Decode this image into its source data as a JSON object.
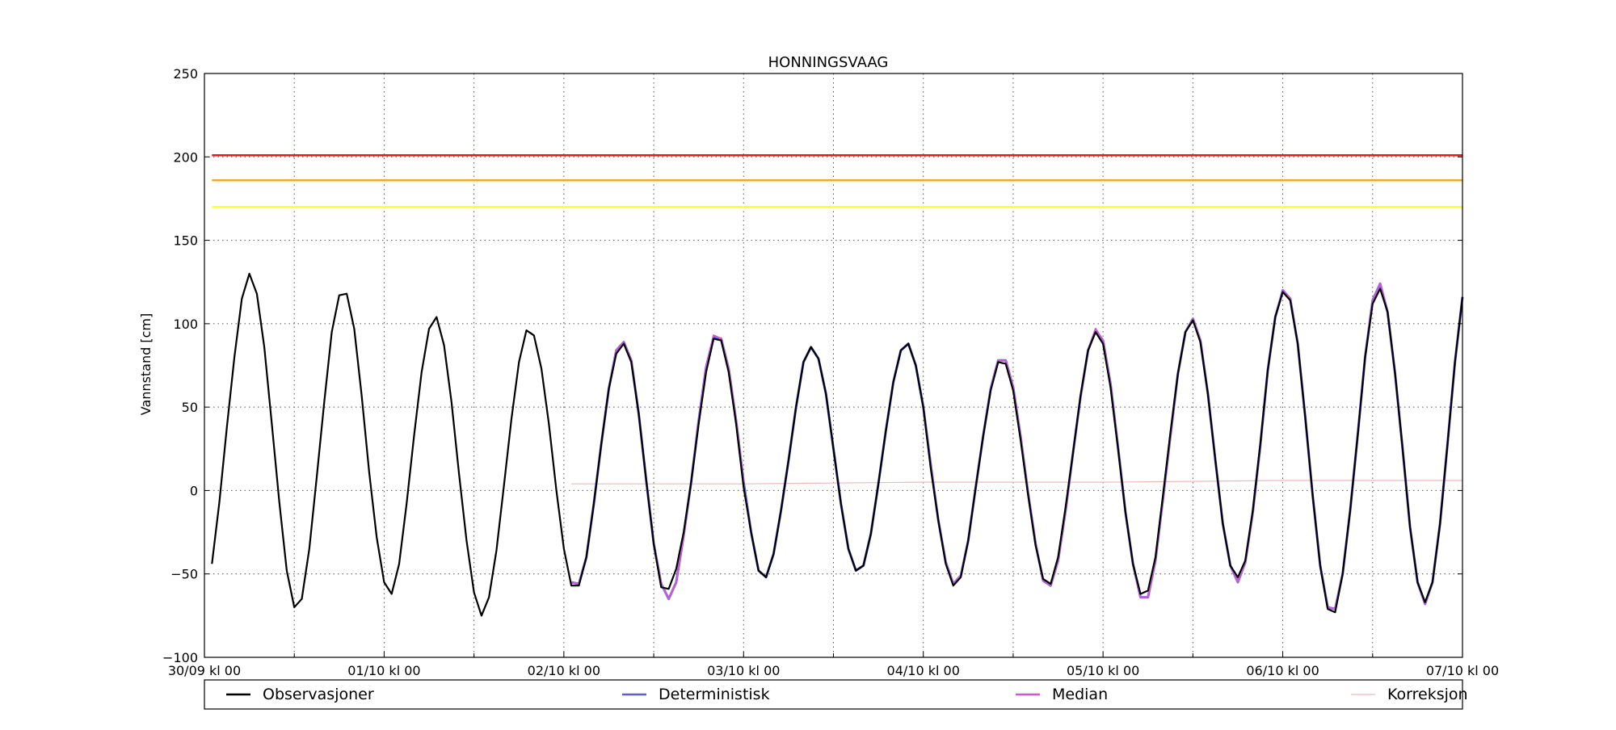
{
  "chart_data": {
    "type": "line",
    "title": "HONNINGSVAAG",
    "xlabel": "",
    "ylabel": "Vannstand [cm]",
    "ylim": [
      -100,
      250
    ],
    "xlim_hours": [
      0,
      168
    ],
    "yticks": [
      250,
      200,
      150,
      100,
      50,
      0,
      -50,
      -100
    ],
    "ytick_labels": [
      "250",
      "200",
      "150",
      "100",
      "50",
      "0",
      "−50",
      "−100"
    ],
    "xticks": [
      {
        "hour": 0,
        "label": "30/09 kl 00"
      },
      {
        "hour": 24,
        "label": "01/10 kl 00"
      },
      {
        "hour": 48,
        "label": "02/10 kl 00"
      },
      {
        "hour": 72,
        "label": "03/10 kl 00"
      },
      {
        "hour": 96,
        "label": "04/10 kl 00"
      },
      {
        "hour": 120,
        "label": "05/10 kl 00"
      },
      {
        "hour": 144,
        "label": "06/10 kl 00"
      },
      {
        "hour": 168,
        "label": "07/10 kl 00"
      }
    ],
    "minor_grid_hours": [
      12,
      36,
      60,
      84,
      108,
      132,
      156
    ],
    "grid": true,
    "legend_position": "bottom",
    "thresholds": [
      {
        "value": 201,
        "color": "#e41a1c"
      },
      {
        "value": 186,
        "color": "#f5a623"
      },
      {
        "value": 170,
        "color": "#ffff33"
      }
    ],
    "series": [
      {
        "name": "Observasjoner",
        "color": "#000000",
        "x": [
          1,
          2,
          3,
          4,
          5,
          6,
          7,
          8,
          9,
          10,
          11,
          12,
          13,
          14,
          15,
          16,
          17,
          18,
          19,
          20,
          21,
          22,
          23,
          24,
          25,
          26,
          27,
          28,
          29,
          30,
          31,
          32,
          33,
          34,
          35,
          36,
          37,
          38,
          39,
          40,
          41,
          42,
          43,
          44,
          45,
          46,
          47,
          48,
          49,
          50,
          51,
          52,
          53,
          54,
          55,
          56,
          57,
          58,
          59,
          60,
          61,
          62,
          63,
          64,
          65,
          66,
          67,
          68,
          69,
          70,
          71,
          72,
          73,
          74,
          75,
          76,
          77,
          78,
          79,
          80,
          81,
          82,
          83,
          84,
          85,
          86,
          87,
          88,
          89,
          90,
          91,
          92,
          93,
          94,
          95,
          96,
          97,
          98,
          99,
          100,
          101,
          102,
          103,
          104,
          105,
          106,
          107,
          108,
          109,
          110,
          111,
          112,
          113,
          114,
          115,
          116,
          117,
          118,
          119,
          120,
          121,
          122,
          123,
          124,
          125,
          126,
          127,
          128,
          129,
          130,
          131,
          132,
          133,
          134,
          135,
          136,
          137,
          138,
          139,
          140,
          141,
          142,
          143,
          144,
          145,
          146,
          147,
          148,
          149,
          150,
          151,
          152,
          153,
          154,
          155,
          156,
          157,
          158,
          159,
          160,
          161,
          162,
          163,
          164,
          165,
          166,
          167,
          168
        ],
        "y": [
          -44,
          -7,
          38,
          80,
          115,
          130,
          118,
          86,
          40,
          -7,
          -48,
          -70,
          -65,
          -35,
          8,
          53,
          95,
          117,
          118,
          97,
          57,
          11,
          -28,
          -55,
          -62,
          -44,
          -8,
          33,
          71,
          97,
          104,
          87,
          53,
          10,
          -30,
          -61,
          -75,
          -64,
          -36,
          3,
          43,
          77,
          96,
          93,
          73,
          40,
          0,
          -35,
          -57,
          -57,
          -40,
          -8,
          28,
          61,
          82,
          88,
          77,
          46,
          6,
          -32,
          -58,
          -59,
          -47,
          -25,
          5,
          40,
          71,
          91,
          90,
          71,
          40,
          2,
          -25,
          -48,
          -52,
          -38,
          -12,
          18,
          50,
          77,
          86,
          79,
          58,
          25,
          -8,
          -35,
          -48,
          -45,
          -26,
          4,
          36,
          65,
          84,
          88,
          75,
          50,
          13,
          -18,
          -44,
          -57,
          -52,
          -30,
          2,
          33,
          60,
          77,
          76,
          60,
          30,
          -3,
          -33,
          -53,
          -56,
          -40,
          -10,
          23,
          57,
          84,
          95,
          88,
          62,
          25,
          -13,
          -44,
          -62,
          -60,
          -40,
          -3,
          35,
          70,
          95,
          102,
          89,
          58,
          18,
          -20,
          -45,
          -52,
          -42,
          -12,
          28,
          72,
          104,
          119,
          114,
          88,
          44,
          -3,
          -45,
          -71,
          -73,
          -50,
          -12,
          33,
          80,
          112,
          121,
          107,
          70,
          25,
          -22,
          -55,
          -67,
          -55,
          -20,
          28,
          77,
          116
        ]
      },
      {
        "name": "Deterministisk",
        "color": "#5a5ee0",
        "x": [
          49,
          50,
          51,
          52,
          53,
          54,
          55,
          56,
          57,
          58,
          59,
          60,
          61,
          62,
          63,
          64,
          65,
          66,
          67,
          68,
          69,
          70,
          71,
          72,
          73,
          74,
          75,
          76,
          77,
          78,
          79,
          80,
          81,
          82,
          83,
          84,
          85,
          86,
          87,
          88,
          89,
          90,
          91,
          92,
          93,
          94,
          95,
          96,
          97,
          98,
          99,
          100,
          101,
          102,
          103,
          104,
          105,
          106,
          107,
          108,
          109,
          110,
          111,
          112,
          113,
          114,
          115,
          116,
          117,
          118,
          119,
          120,
          121,
          122,
          123,
          124,
          125,
          126,
          127,
          128,
          129,
          130,
          131,
          132,
          133,
          134,
          135,
          136,
          137,
          138,
          139,
          140,
          141,
          142,
          143,
          144,
          145,
          146,
          147,
          148,
          149,
          150,
          151,
          152,
          153,
          154,
          155,
          156,
          157,
          158,
          159,
          160,
          161,
          162,
          163,
          164,
          165,
          166,
          167,
          168
        ],
        "y": [
          -55,
          -56,
          -40,
          -8,
          28,
          61,
          84,
          89,
          78,
          46,
          6,
          -32,
          -56,
          -65,
          -55,
          -27,
          5,
          42,
          74,
          92,
          91,
          73,
          42,
          5,
          -25,
          -48,
          -52,
          -38,
          -12,
          18,
          50,
          77,
          86,
          79,
          58,
          25,
          -8,
          -35,
          -48,
          -45,
          -26,
          4,
          36,
          65,
          84,
          88,
          75,
          50,
          15,
          -18,
          -43,
          -56,
          -51,
          -30,
          2,
          33,
          61,
          78,
          78,
          62,
          32,
          -2,
          -32,
          -54,
          -57,
          -42,
          -12,
          23,
          56,
          84,
          96,
          90,
          64,
          26,
          -13,
          -44,
          -64,
          -64,
          -42,
          -5,
          33,
          70,
          95,
          103,
          90,
          58,
          18,
          -20,
          -45,
          -55,
          -43,
          -13,
          27,
          72,
          104,
          120,
          115,
          88,
          44,
          -3,
          -45,
          -70,
          -71,
          -50,
          -12,
          33,
          80,
          114,
          124,
          107,
          70,
          25,
          -22,
          -55,
          -68,
          -55,
          -20,
          28,
          77,
          116
        ]
      },
      {
        "name": "Median",
        "color": "#c85cd6",
        "x": [
          49,
          50,
          51,
          52,
          53,
          54,
          55,
          56,
          57,
          58,
          59,
          60,
          61,
          62,
          63,
          64,
          65,
          66,
          67,
          68,
          69,
          70,
          71,
          72,
          96,
          97,
          98,
          99,
          100,
          101,
          102,
          103,
          104,
          105,
          106,
          107,
          108,
          109,
          110,
          111,
          112,
          113,
          114,
          115,
          116,
          117,
          118,
          119,
          120,
          121,
          122,
          123,
          124,
          125,
          126,
          127,
          128,
          129,
          130,
          131,
          132,
          133,
          134,
          135,
          136,
          137,
          138,
          139,
          140,
          141,
          142,
          143,
          144,
          145,
          146,
          147,
          148,
          149,
          150,
          151,
          152,
          153,
          154,
          155,
          156,
          157,
          158,
          159,
          160,
          161,
          162,
          163,
          164,
          165,
          166,
          167,
          168
        ],
        "y": [
          -55,
          -56,
          -40,
          -8,
          28,
          61,
          84,
          89,
          78,
          46,
          6,
          -32,
          -56,
          -65,
          -55,
          -27,
          5,
          42,
          74,
          93,
          91,
          73,
          42,
          5,
          50,
          14,
          -18,
          -43,
          -56,
          -51,
          -30,
          2,
          33,
          61,
          78,
          78,
          62,
          32,
          -2,
          -32,
          -54,
          -57,
          -42,
          -12,
          23,
          56,
          84,
          97,
          90,
          64,
          26,
          -13,
          -44,
          -64,
          -64,
          -42,
          -5,
          33,
          70,
          95,
          103,
          90,
          58,
          18,
          -20,
          -45,
          -55,
          -43,
          -13,
          27,
          72,
          104,
          120,
          115,
          88,
          44,
          -3,
          -45,
          -70,
          -71,
          -50,
          -12,
          33,
          80,
          114,
          124,
          107,
          70,
          25,
          -22,
          -55,
          -68,
          -55,
          -20,
          28,
          77,
          116
        ]
      },
      {
        "name": "Korreksjon",
        "color": "#f2b8b8",
        "x": [
          49,
          72,
          96,
          120,
          144,
          168
        ],
        "y": [
          4,
          4,
          5,
          5,
          6,
          6
        ]
      }
    ],
    "legend": [
      {
        "name": "Observasjoner",
        "color": "#000000"
      },
      {
        "name": "Deterministisk",
        "color": "#5a5ee0"
      },
      {
        "name": "Median",
        "color": "#c85cd6"
      },
      {
        "name": "Korreksjon",
        "color": "#f2b8b8"
      }
    ]
  }
}
